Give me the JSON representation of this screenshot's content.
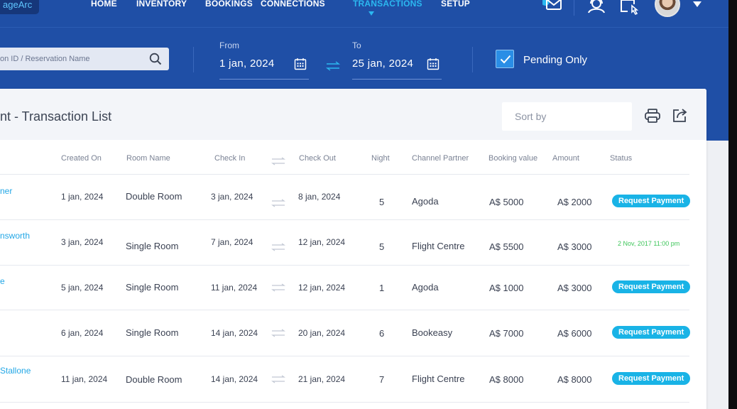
{
  "app": {
    "logo_text": "ageArc"
  },
  "nav": {
    "items": [
      {
        "label": "HOME"
      },
      {
        "label": "INVENTORY"
      },
      {
        "label": "BOOKINGS"
      },
      {
        "label": "CONNECTIONS"
      },
      {
        "label": "TRANSACTIONS",
        "active": true
      },
      {
        "label": "SETUP"
      }
    ],
    "icons": [
      "mail-icon",
      "user-support-icon",
      "touch-screen-icon"
    ]
  },
  "filters": {
    "search_placeholder": "on ID / Reservation Name",
    "from_label": "From",
    "from_value": "1 jan, 2024",
    "to_label": "To",
    "to_value": "25 jan, 2024",
    "pending_label": "Pending Only",
    "pending_checked": true
  },
  "card": {
    "title": "nt - Transaction List",
    "sort_placeholder": "Sort by"
  },
  "table": {
    "headers": {
      "created_on": "Created On",
      "room_name": "Room Name",
      "check_in": "Check In",
      "check_out": "Check Out",
      "night": "Night",
      "channel_partner": "Channel Partner",
      "booking_value": "Booking value",
      "amount": "Amount",
      "status": "Status"
    },
    "rows": [
      {
        "name": "ner",
        "created": "1 jan, 2024",
        "room": "Double  Room",
        "check_in": "3 jan, 2024",
        "check_out": "8 jan, 2024",
        "night": "5",
        "partner": "Agoda",
        "booking_value": "A$ 5000",
        "amount": "A$ 2000",
        "status": "Request Payment"
      },
      {
        "name": "nsworth",
        "created": "3 jan, 2024",
        "room": "Single Room",
        "check_in": "7 jan, 2024",
        "check_out": "12 jan, 2024",
        "night": "5",
        "partner": "Flight Centre",
        "booking_value": "A$ 5500",
        "amount": "A$ 3000",
        "status": "2 Nov, 2017  11:00 pm"
      },
      {
        "name": "e",
        "created": "5 jan, 2024",
        "room": "Single Room",
        "check_in": "11 jan, 2024",
        "check_out": "12 jan, 2024",
        "night": "1",
        "partner": "Agoda",
        "booking_value": "A$ 1000",
        "amount": "A$ 3000",
        "status": "Request Payment"
      },
      {
        "name": "",
        "created": "6 jan, 2024",
        "room": "Single Room",
        "check_in": "14 jan, 2024",
        "check_out": "20 jan, 2024",
        "night": "6",
        "partner": "Bookeasy",
        "booking_value": "A$ 7000",
        "amount": "A$ 6000",
        "status": "Request Payment"
      },
      {
        "name": "Stallone",
        "created": "11 jan, 2024",
        "room": "Double  Room",
        "check_in": "14 jan, 2024",
        "check_out": "21 jan, 2024",
        "night": "7",
        "partner": "Flight Centre",
        "booking_value": "A$ 8000",
        "amount": "A$ 8000",
        "status": "Request Payment"
      }
    ]
  },
  "colors": {
    "brand_blue": "#1f4fa6",
    "accent_cyan": "#19b3e6",
    "paid_green": "#3ec65a"
  }
}
